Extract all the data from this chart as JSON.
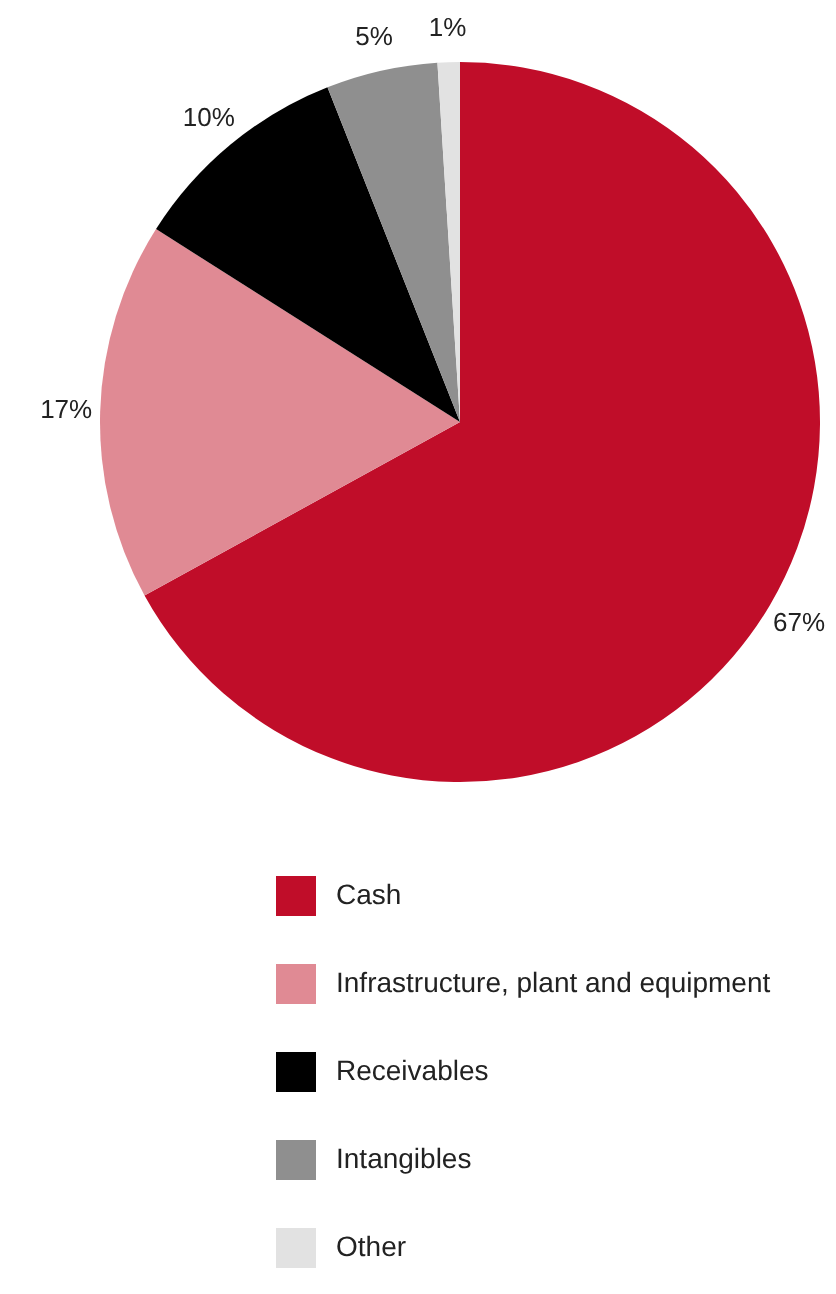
{
  "chart_data": {
    "type": "pie",
    "categories": [
      "Cash",
      "Infrastructure, plant and equipment",
      "Receivables",
      "Intangibles",
      "Other"
    ],
    "values": [
      67,
      17,
      10,
      5,
      1
    ],
    "colors": [
      "#c00d29",
      "#e08a94",
      "#000000",
      "#8f8f8f",
      "#e2e2e2"
    ],
    "value_labels": [
      "67%",
      "17%",
      "10%",
      "5%",
      "1%"
    ],
    "legend": "bottom"
  }
}
